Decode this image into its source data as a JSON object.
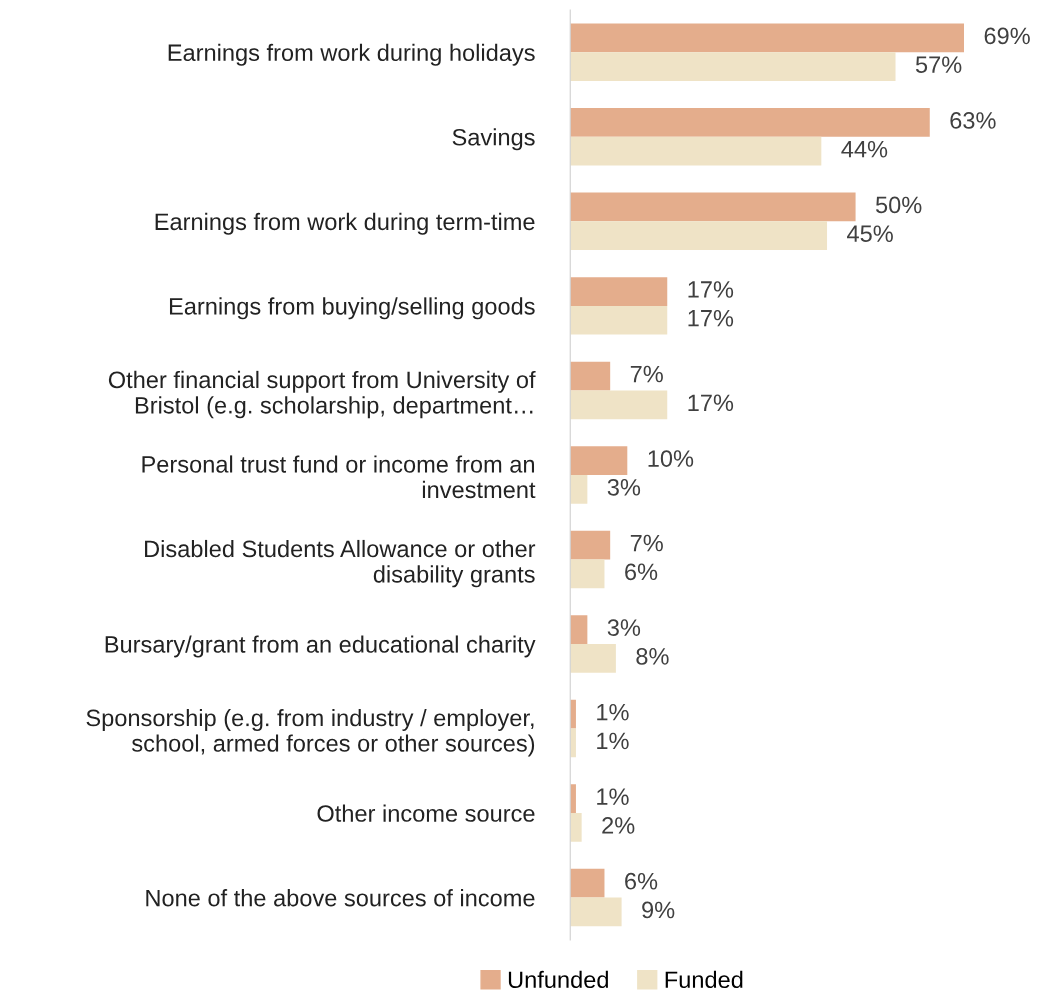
{
  "chart_data": {
    "type": "bar",
    "orientation": "horizontal",
    "legend": "bottom",
    "categories": [
      "Earnings from work during holidays",
      "Savings",
      "Earnings from work during term-time",
      "Earnings from buying/selling goods",
      "Other financial support from University of\nBristol (e.g. scholarship, department…",
      "Personal trust fund or income from an\ninvestment",
      "Disabled Students Allowance or other\ndisability grants",
      "Bursary/grant from an educational charity",
      "Sponsorship (e.g. from industry / employer,\nschool, armed forces or other sources)",
      "Other income source",
      "None of the above sources of income"
    ],
    "series": [
      {
        "name": "Unfunded",
        "color": "#e4ad8c",
        "values": [
          69,
          63,
          50,
          17,
          7,
          10,
          7,
          3,
          1,
          1,
          6
        ],
        "value_labels": [
          "69%",
          "63%",
          "50%",
          "17%",
          "7%",
          "10%",
          "7%",
          "3%",
          "1%",
          "1%",
          "6%"
        ]
      },
      {
        "name": "Funded",
        "color": "#efe3c6",
        "values": [
          57,
          44,
          45,
          17,
          17,
          3,
          6,
          8,
          1,
          2,
          9
        ],
        "value_labels": [
          "57%",
          "44%",
          "45%",
          "17%",
          "17%",
          "3%",
          "6%",
          "8%",
          "1%",
          "2%",
          "9%"
        ]
      }
    ]
  }
}
